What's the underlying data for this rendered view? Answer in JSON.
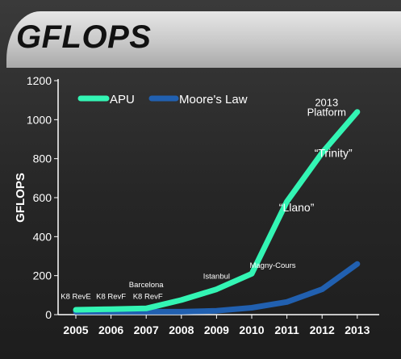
{
  "title": "GFLOPS",
  "colors": {
    "apu": "#33f5b4",
    "moore": "#2160b0",
    "axis": "#ffffff"
  },
  "chart_data": {
    "type": "line",
    "ylabel": "GFLOPS",
    "xlabel": "",
    "ylim": [
      0,
      1200
    ],
    "yticks": [
      "0",
      "200",
      "400",
      "600",
      "800",
      "1000",
      "1200"
    ],
    "x": [
      "2005",
      "2006",
      "2007",
      "2008",
      "2009",
      "2010",
      "2011",
      "2012",
      "2013"
    ],
    "grid": false,
    "legend_position": "top-left",
    "series": [
      {
        "name": "APU",
        "values": [
          25,
          28,
          32,
          75,
          130,
          210,
          580,
          830,
          1040
        ]
      },
      {
        "name": "Moore's Law",
        "values": [
          15,
          15,
          15,
          15,
          20,
          35,
          65,
          130,
          260
        ]
      }
    ],
    "annotations": [
      {
        "text": "K8 RevE",
        "x": "2005",
        "y": 80
      },
      {
        "text": "K8 RevF",
        "x": "2006",
        "y": 80
      },
      {
        "text": "K8 RevF",
        "x": "2007",
        "y": 80
      },
      {
        "text": "Barcelona",
        "x": "2007",
        "y": 140
      },
      {
        "text": "Istanbul",
        "x": "2009",
        "y": 185
      },
      {
        "text": "Magny-Cours",
        "x": "2010",
        "y": 240
      },
      {
        "text": "“Llano”",
        "x": "2011",
        "y": 530
      },
      {
        "text": "“Trinity”",
        "x": "2012",
        "y": 810
      },
      {
        "text": "2013",
        "x": "2013",
        "y": 1070
      },
      {
        "text": "Platform",
        "x": "2013",
        "y": 1020
      }
    ]
  }
}
